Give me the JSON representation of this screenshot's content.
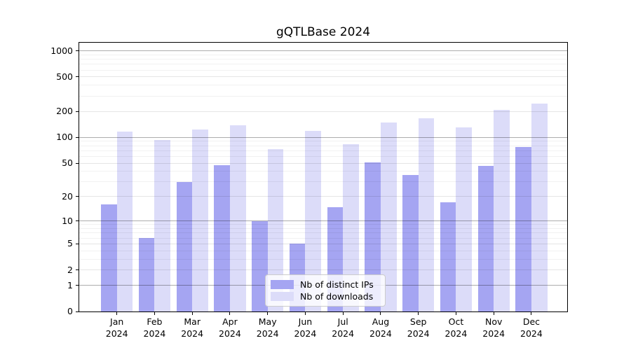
{
  "title": "gQTLBase 2024",
  "colors": {
    "distinct_ips": "#a5a5f2",
    "downloads": "#dcdcf9",
    "grid_major": "rgba(0,0,0,0.32)",
    "grid_labeled": "rgba(0,0,0,0.10)",
    "grid_minor": "rgba(0,0,0,0.055)"
  },
  "legend": {
    "items": [
      {
        "label": "Nb of distinct IPs",
        "color": "#a5a5f2"
      },
      {
        "label": "Nb of downloads",
        "color": "#dcdcf9"
      }
    ]
  },
  "chart_data": {
    "type": "bar",
    "title": "gQTLBase 2024",
    "categories": [
      "Jan",
      "Feb",
      "Mar",
      "Apr",
      "May",
      "Jun",
      "Jul",
      "Aug",
      "Sep",
      "Oct",
      "Nov",
      "Dec"
    ],
    "year_label": "2024",
    "series": [
      {
        "name": "Nb of distinct IPs",
        "color": "#a5a5f2",
        "values": [
          16,
          6,
          30,
          47,
          10,
          5,
          15,
          51,
          36,
          17,
          46,
          77
        ]
      },
      {
        "name": "Nb of downloads",
        "color": "#dcdcf9",
        "values": [
          117,
          93,
          123,
          139,
          73,
          119,
          83,
          150,
          165,
          131,
          208,
          248
        ]
      }
    ],
    "yscale": "symlog",
    "yticks": [
      0,
      1,
      2,
      5,
      10,
      20,
      50,
      100,
      200,
      500,
      1000
    ],
    "ylim": [
      0,
      1240
    ],
    "xlabel": "",
    "ylabel": "",
    "grid": "on",
    "legend_position": "lower center"
  }
}
